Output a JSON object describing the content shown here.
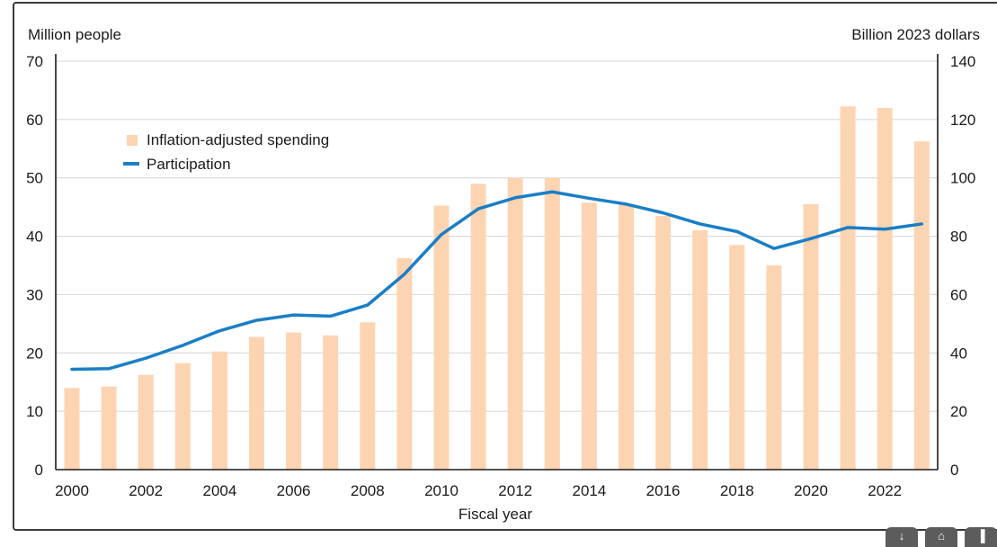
{
  "chart_data": {
    "type": "bar",
    "title": "",
    "xlabel": "Fiscal year",
    "ylabel_left": "Million people",
    "ylabel_right": "Billion 2023 dollars",
    "x": [
      2000,
      2001,
      2002,
      2003,
      2004,
      2005,
      2006,
      2007,
      2008,
      2009,
      2010,
      2011,
      2012,
      2013,
      2014,
      2015,
      2016,
      2017,
      2018,
      2019,
      2020,
      2021,
      2022,
      2023
    ],
    "x_tick_labels": [
      "2000",
      "2002",
      "2004",
      "2006",
      "2008",
      "2010",
      "2012",
      "2014",
      "2016",
      "2018",
      "2020",
      "2022"
    ],
    "ylim_left": [
      0,
      70
    ],
    "yticks_left": [
      "0",
      "10",
      "20",
      "30",
      "40",
      "50",
      "60",
      "70"
    ],
    "ylim_right": [
      0,
      140
    ],
    "yticks_right": [
      "0",
      "20",
      "40",
      "60",
      "80",
      "100",
      "120",
      "140"
    ],
    "grid": true,
    "legend_position": "upper-left",
    "series": [
      {
        "name": "Inflation-adjusted spending",
        "type": "bar",
        "axis": "right",
        "color": "#fdd4b2",
        "values": [
          28,
          28.5,
          32.5,
          36.5,
          40.5,
          45.5,
          47,
          46,
          50.5,
          72.5,
          90.5,
          98,
          100,
          100,
          91.5,
          91,
          87,
          82,
          77,
          70,
          91,
          124.5,
          124,
          112.5
        ]
      },
      {
        "name": "Participation",
        "type": "line",
        "axis": "left",
        "color": "#1a7ec6",
        "values": [
          17.2,
          17.3,
          19.1,
          21.3,
          23.8,
          25.6,
          26.5,
          26.3,
          28.2,
          33.5,
          40.3,
          44.7,
          46.6,
          47.6,
          46.5,
          45.5,
          44.0,
          42.1,
          40.8,
          37.9,
          39.6,
          41.5,
          41.2,
          42.1
        ]
      }
    ]
  },
  "controls": {
    "download_icon": "download-icon",
    "share_icon": "share-icon",
    "chart_icon": "bar-chart-icon"
  }
}
